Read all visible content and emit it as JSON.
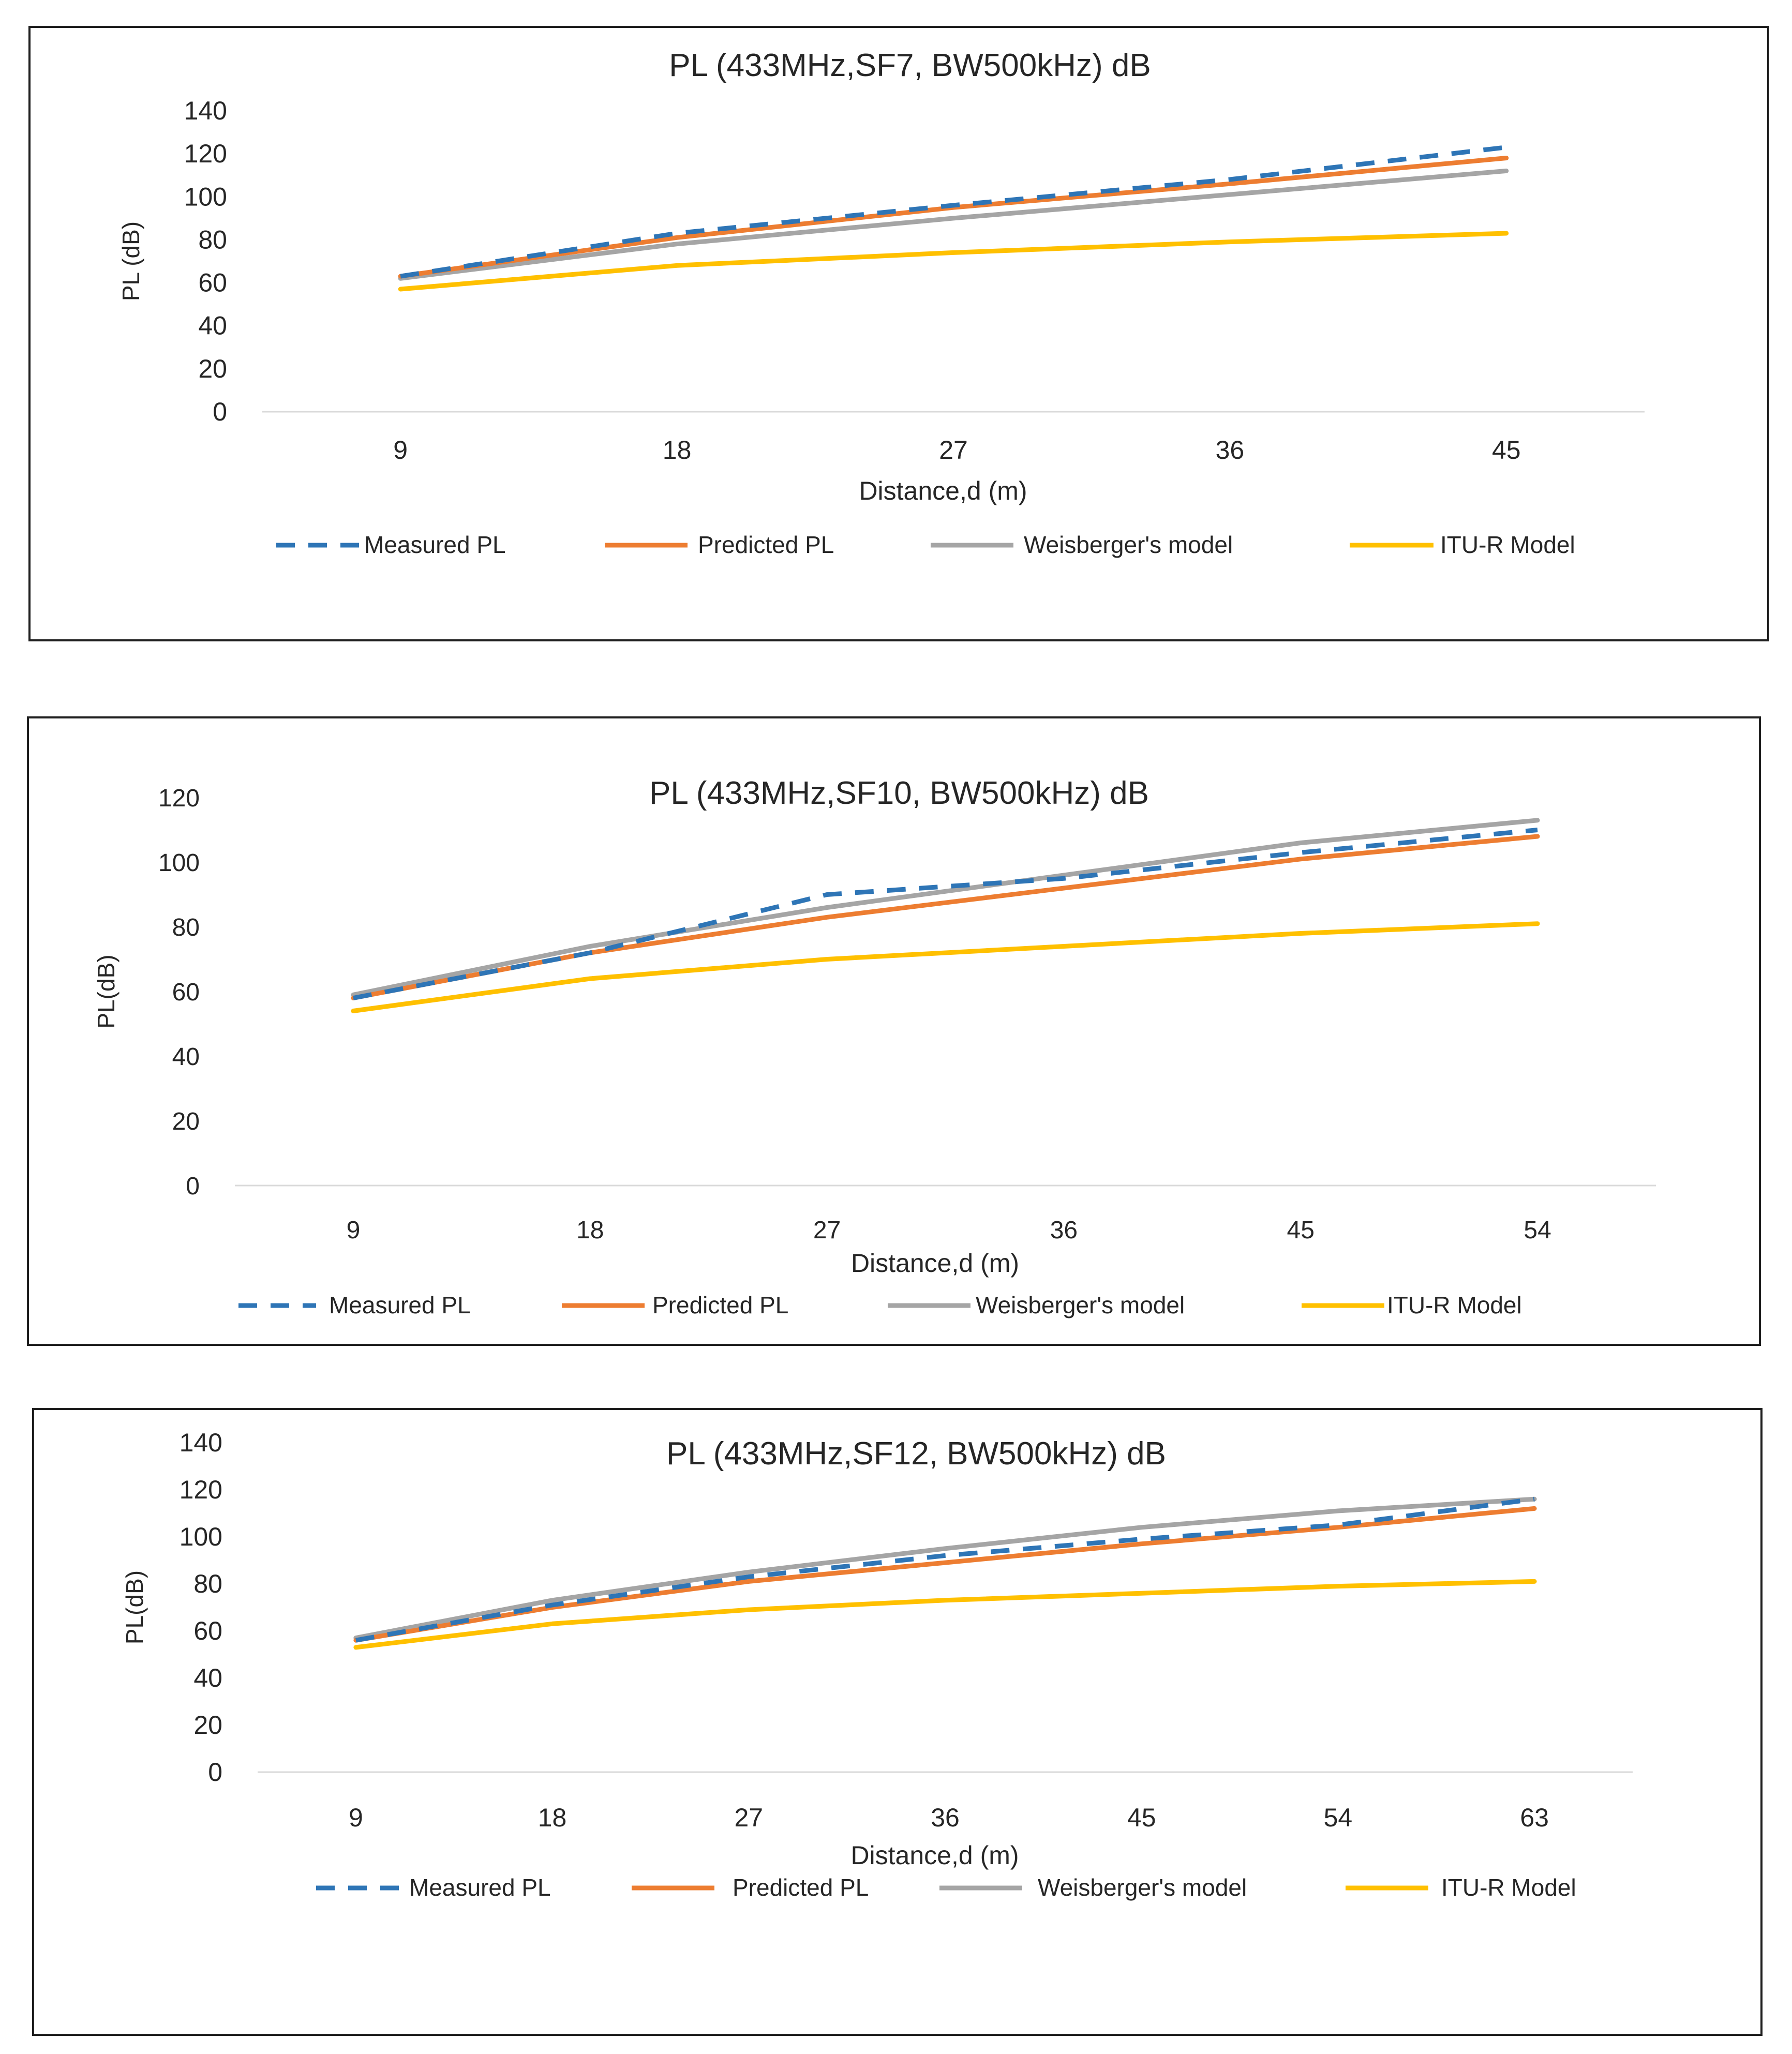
{
  "chart_data": [
    {
      "type": "line",
      "title": "PL (433MHz,SF7, BW500kHz) dB",
      "xlabel": "Distance,d (m)",
      "ylabel": "PL (dB)",
      "categories": [
        "9",
        "18",
        "27",
        "36",
        "45"
      ],
      "ylim": [
        0,
        140
      ],
      "yticks": [
        "0",
        "20",
        "40",
        "60",
        "80",
        "100",
        "120",
        "140"
      ],
      "grid": false,
      "legend": "bottom",
      "series": [
        {
          "name": "Measured PL",
          "color": "#2E75B6",
          "style": "dashed",
          "values": [
            63,
            83,
            96,
            108,
            123
          ]
        },
        {
          "name": "Predicted PL",
          "color": "#ED7D31",
          "style": "solid",
          "values": [
            63,
            81,
            95,
            106,
            118
          ]
        },
        {
          "name": "Weisberger's model",
          "color": "#A5A5A5",
          "style": "solid",
          "values": [
            62,
            78,
            90,
            101,
            112
          ]
        },
        {
          "name": "ITU-R Model",
          "color": "#FFC000",
          "style": "solid",
          "values": [
            57,
            68,
            74,
            79,
            83
          ]
        }
      ]
    },
    {
      "type": "line",
      "title": "PL (433MHz,SF10, BW500kHz) dB",
      "xlabel": "Distance,d (m)",
      "ylabel": "PL(dB)",
      "categories": [
        "9",
        "18",
        "27",
        "36",
        "45",
        "54"
      ],
      "ylim": [
        0,
        120
      ],
      "yticks": [
        "0",
        "20",
        "40",
        "60",
        "80",
        "100",
        "120"
      ],
      "grid": false,
      "legend": "bottom",
      "series": [
        {
          "name": "Measured PL",
          "color": "#2E75B6",
          "style": "dashed",
          "values": [
            58,
            72,
            90,
            95,
            103,
            110
          ]
        },
        {
          "name": "Predicted PL",
          "color": "#ED7D31",
          "style": "solid",
          "values": [
            58,
            72,
            83,
            92,
            101,
            108
          ]
        },
        {
          "name": "Weisberger's model",
          "color": "#A5A5A5",
          "style": "solid",
          "values": [
            59,
            74,
            86,
            96,
            106,
            113
          ]
        },
        {
          "name": "ITU-R Model",
          "color": "#FFC000",
          "style": "solid",
          "values": [
            54,
            64,
            70,
            74,
            78,
            81
          ]
        }
      ]
    },
    {
      "type": "line",
      "title": "PL (433MHz,SF12, BW500kHz) dB",
      "xlabel": "Distance,d (m)",
      "ylabel": "PL(dB)",
      "categories": [
        "9",
        "18",
        "27",
        "36",
        "45",
        "54",
        "63"
      ],
      "ylim": [
        0,
        140
      ],
      "yticks": [
        "0",
        "20",
        "40",
        "60",
        "80",
        "100",
        "120",
        "140"
      ],
      "grid": false,
      "legend": "bottom",
      "series": [
        {
          "name": "Measured PL",
          "color": "#2E75B6",
          "style": "dashed",
          "values": [
            56,
            71,
            83,
            92,
            99,
            105,
            116
          ]
        },
        {
          "name": "Predicted PL",
          "color": "#ED7D31",
          "style": "solid",
          "values": [
            56,
            70,
            81,
            89,
            97,
            104,
            112
          ]
        },
        {
          "name": "Weisberger's model",
          "color": "#A5A5A5",
          "style": "solid",
          "values": [
            57,
            73,
            85,
            95,
            104,
            111,
            116
          ]
        },
        {
          "name": "ITU-R Model",
          "color": "#FFC000",
          "style": "solid",
          "values": [
            53,
            63,
            69,
            73,
            76,
            79,
            81
          ]
        }
      ]
    }
  ]
}
